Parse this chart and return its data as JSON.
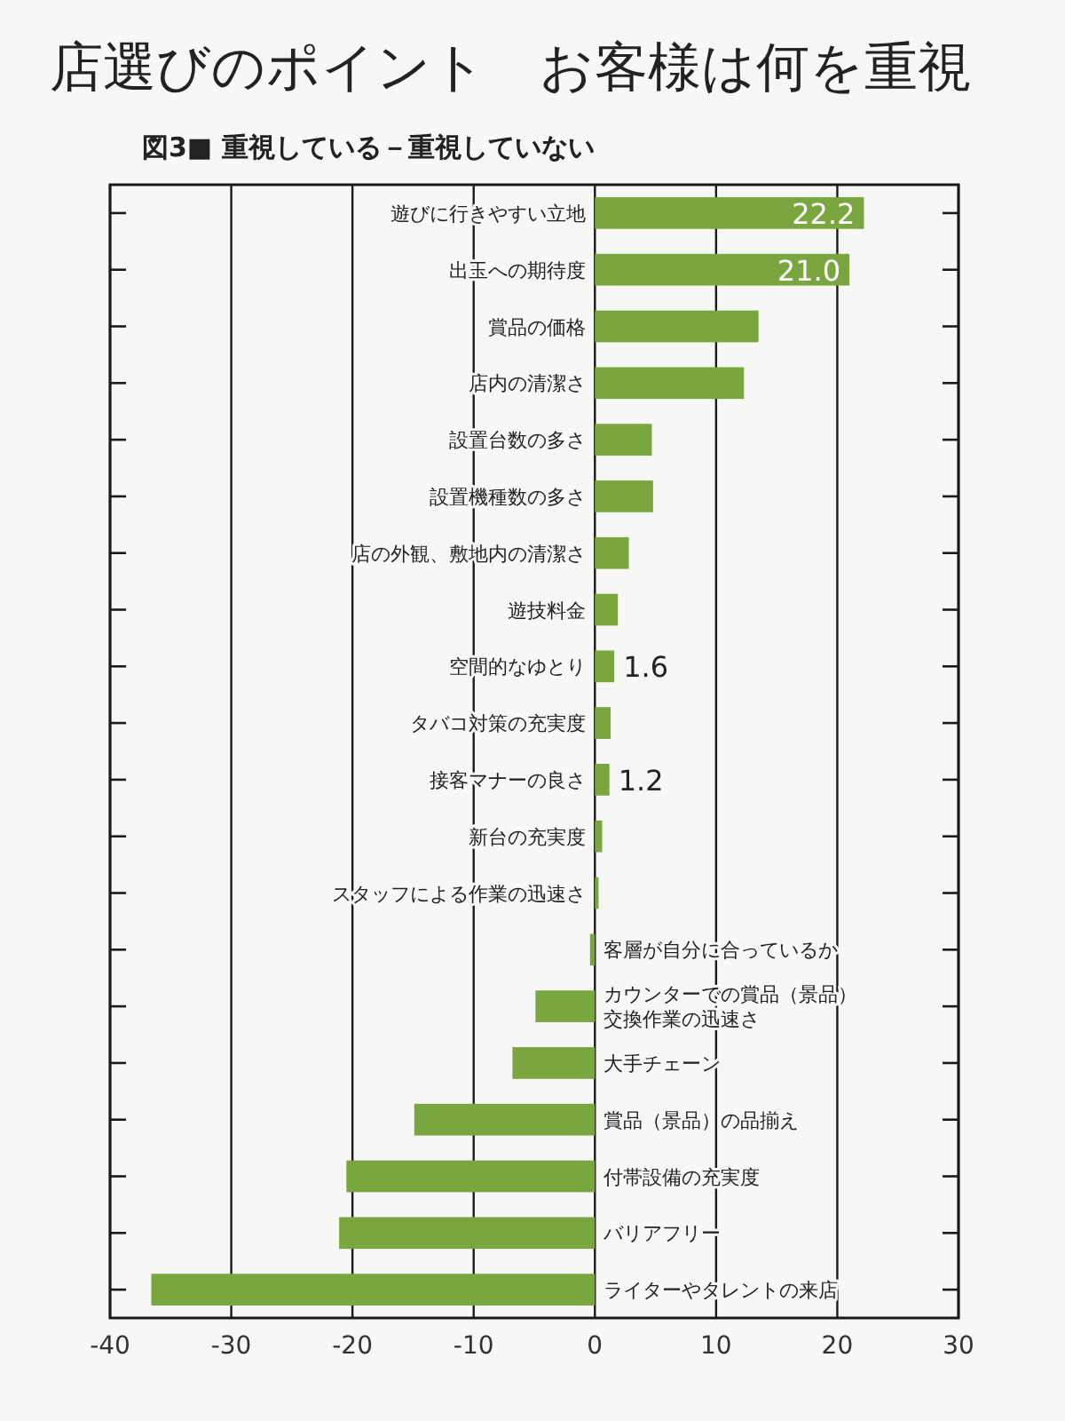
{
  "chart_data": {
    "type": "bar",
    "orientation": "horizontal",
    "title": "店選びのポイント　お客様は何を重視",
    "subtitle": "図3■ 重視している－重視していない",
    "categories": [
      "遊びに行きやすい立地",
      "出玉への期待度",
      "賞品の価格",
      "店内の清潔さ",
      "設置台数の多さ",
      "設置機種数の多さ",
      "店の外観、敷地内の清潔さ",
      "遊技料金",
      "空間的なゆとり",
      "タバコ対策の充実度",
      "接客マナーの良さ",
      "新台の充実度",
      "スタッフによる作業の迅速さ",
      "客層が自分に合っているか",
      "カウンターでの賞品（景品）交換作業の迅速さ",
      "大手チェーン",
      "賞品（景品）の品揃え",
      "付帯設備の充実度",
      "バリアフリー",
      "ライターやタレントの来店"
    ],
    "values": [
      22.2,
      21.0,
      13.5,
      12.3,
      4.7,
      4.8,
      2.8,
      1.9,
      1.6,
      1.3,
      1.2,
      0.6,
      0.3,
      -0.4,
      -4.9,
      -6.8,
      -14.9,
      -20.5,
      -21.1,
      -36.6
    ],
    "value_labels": [
      "22.2",
      "21.0",
      null,
      null,
      null,
      null,
      null,
      null,
      "1.6",
      null,
      "1.2",
      null,
      null,
      null,
      null,
      null,
      null,
      null,
      null,
      null
    ],
    "color": "#7aa640",
    "xlim": [
      -40,
      30
    ],
    "xticks": [
      -40,
      -30,
      -20,
      -10,
      0,
      10,
      20,
      30
    ],
    "grid": "x"
  }
}
